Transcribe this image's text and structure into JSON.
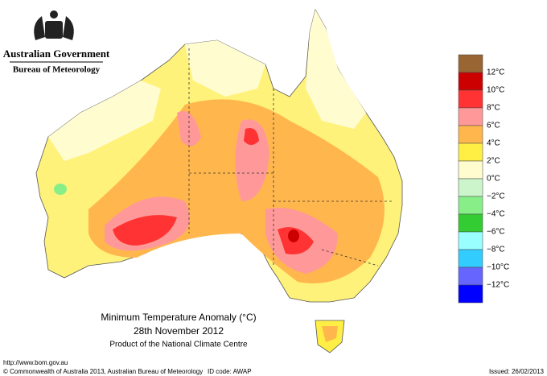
{
  "header": {
    "government": "Australian Government",
    "agency": "Bureau of Meteorology"
  },
  "title": {
    "line1": "Minimum Temperature Anomaly (°C)",
    "line2": "28th November 2012",
    "line3": "Product of the National Climate Centre"
  },
  "legend": {
    "colors": [
      "#996633",
      "#cc0000",
      "#ff3333",
      "#ff9999",
      "#ffb74d",
      "#ffee44",
      "#fffcd0",
      "#ccf5cc",
      "#88ee88",
      "#33cc33",
      "#99ffff",
      "#33ccff",
      "#6666ff",
      "#0000ff"
    ],
    "labels": [
      "12°C",
      "10°C",
      "8°C",
      "6°C",
      "4°C",
      "2°C",
      "0°C",
      "−2°C",
      "−4°C",
      "−6°C",
      "−8°C",
      "−10°C",
      "−12°C"
    ]
  },
  "footer": {
    "url": "http://www.bom.gov.au",
    "copyright": "© Commonwealth of Australia 2013, Australian Bureau of Meteorology",
    "id_code": "ID code: AWAP",
    "issued": "Issued: 26/02/2013"
  }
}
